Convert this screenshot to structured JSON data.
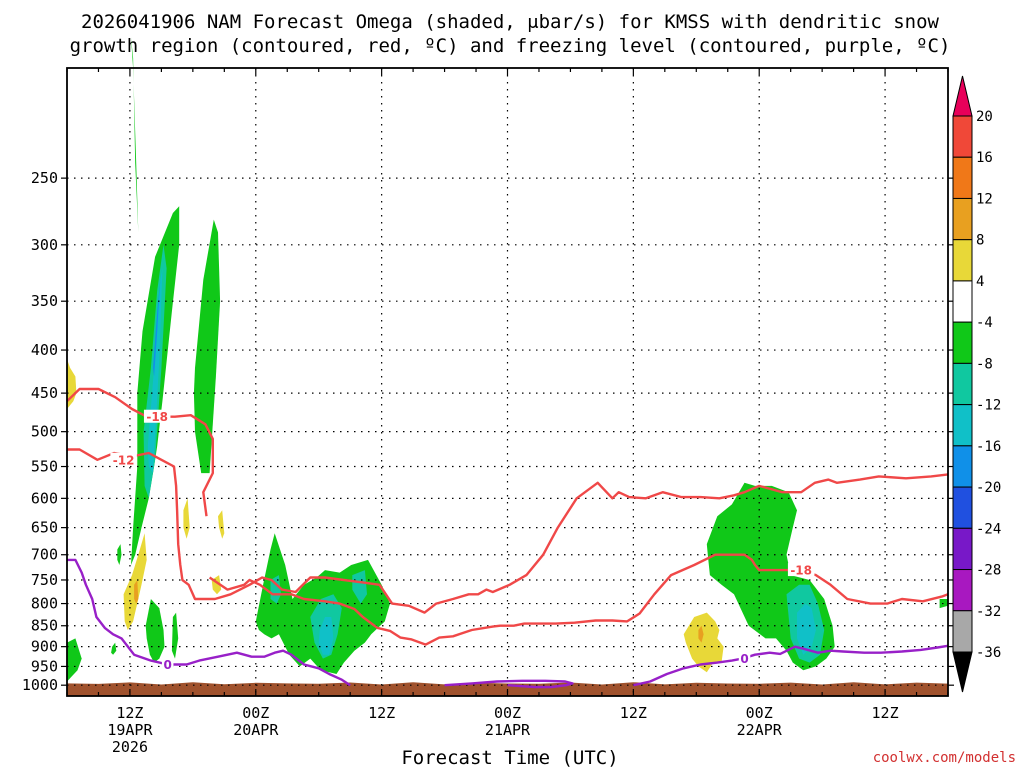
{
  "title_line1": "2026041906 NAM Forecast Omega (shaded, μbar/s) for KMSS with dendritic snow",
  "title_line2": "growth region (contoured, red, ºC) and freezing level (contoured, purple, ºC)",
  "credit": "coolwx.com/models",
  "chart_data": {
    "type": "heatmap",
    "title": "2026041906 NAM Forecast Omega (shaded, μbar/s) for KMSS with dendritic snow growth region (contoured, red, ºC) and freezing level (contoured, purple, ºC)",
    "xlabel": "Forecast Time (UTC)",
    "ylabel": "",
    "x_range_hours_from_init": [
      0,
      84
    ],
    "y_scale": "log-pressure",
    "y_reversed": true,
    "y_ticks": [
      250,
      300,
      350,
      400,
      450,
      500,
      550,
      600,
      650,
      700,
      750,
      800,
      850,
      900,
      950,
      1000
    ],
    "y_tick_labels": [
      "250",
      "300",
      "350",
      "400",
      "450",
      "500",
      "550",
      "600",
      "650",
      "700",
      "750",
      "800",
      "850",
      "900",
      "950",
      "1000"
    ],
    "x_ticks": [
      {
        "hour": 6,
        "lines": [
          "12Z",
          "19APR",
          "2026"
        ]
      },
      {
        "hour": 18,
        "lines": [
          "00Z",
          "20APR"
        ]
      },
      {
        "hour": 30,
        "lines": [
          "12Z"
        ]
      },
      {
        "hour": 42,
        "lines": [
          "00Z",
          "21APR"
        ]
      },
      {
        "hour": 54,
        "lines": [
          "12Z"
        ]
      },
      {
        "hour": 66,
        "lines": [
          "00Z",
          "22APR"
        ]
      },
      {
        "hour": 78,
        "lines": [
          "12Z"
        ]
      }
    ],
    "grid": true,
    "colorbar": {
      "units": "μbar/s",
      "labels": [
        "20",
        "16",
        "12",
        "8",
        "4",
        "-4",
        "-8",
        "-12",
        "-16",
        "-20",
        "-24",
        "-28",
        "-32",
        "-36"
      ],
      "colors": [
        "#e8005a",
        "#f04838",
        "#f07818",
        "#e8a020",
        "#e8d838",
        "#ffffff",
        "#10c818",
        "#10c8a0",
        "#10c0c8",
        "#1090e8",
        "#2050e0",
        "#7818c8",
        "#a818c0",
        "#a8a8a8",
        "#000000"
      ]
    },
    "shaded_regions": [
      {
        "color": "#10c818",
        "hours": [
          6.1,
          6.3,
          6.6,
          6.8,
          6.5,
          6.3
        ],
        "pressures": [
          170,
          185,
          240,
          290,
          240,
          180
        ]
      },
      {
        "color": "#10c818",
        "hours": [
          6.7,
          7.2,
          8.4,
          10.1,
          10.7,
          10.7,
          10.0,
          9.1,
          8.6,
          8.3,
          7.8,
          7.1,
          6.5,
          6.1,
          6.3,
          6.7
        ],
        "pressures": [
          450,
          380,
          310,
          275,
          270,
          300,
          360,
          460,
          520,
          550,
          600,
          650,
          700,
          720,
          650,
          550
        ]
      },
      {
        "color": "#10c8a0",
        "hours": [
          7.3,
          8.0,
          8.6,
          9.2,
          9.5,
          9.0,
          8.4,
          7.8,
          7.4
        ],
        "pressures": [
          500,
          420,
          340,
          300,
          320,
          420,
          540,
          600,
          580
        ]
      },
      {
        "color": "#10c0c8",
        "hours": [
          7.7,
          8.3,
          8.9,
          9.1,
          8.8,
          8.2,
          7.8
        ],
        "pressures": [
          520,
          420,
          330,
          320,
          410,
          560,
          550
        ]
      },
      {
        "color": "#1090e8",
        "hours": [
          8.2,
          8.6,
          8.9,
          8.6,
          8.3
        ],
        "pressures": [
          420,
          360,
          330,
          380,
          430
        ]
      },
      {
        "color": "#10c818",
        "hours": [
          12.2,
          13.0,
          14.0,
          14.4,
          14.6,
          14.2,
          13.6,
          12.8,
          12.2,
          12.1
        ],
        "pressures": [
          420,
          330,
          280,
          290,
          350,
          430,
          560,
          560,
          500,
          450
        ]
      },
      {
        "color": "#10c818",
        "hours": [
          7.5,
          8.0,
          8.8,
          9.2,
          9.3,
          8.8,
          8.3,
          7.9,
          7.6
        ],
        "pressures": [
          850,
          790,
          810,
          860,
          900,
          930,
          940,
          920,
          880
        ]
      },
      {
        "color": "#10c818",
        "hours": [
          10.1,
          10.4,
          10.6,
          10.3,
          10.0
        ],
        "pressures": [
          830,
          820,
          880,
          930,
          910
        ]
      },
      {
        "color": "#10c818",
        "hours": [
          4.3,
          4.6,
          4.7,
          4.4,
          4.2
        ],
        "pressures": [
          900,
          890,
          910,
          920,
          915
        ]
      },
      {
        "color": "#10c818",
        "hours": [
          0,
          0.8,
          1.4,
          1.0,
          0
        ],
        "pressures": [
          890,
          880,
          930,
          960,
          990
        ]
      },
      {
        "color": "#10c818",
        "hours": [
          4.8,
          5.1,
          5.2,
          5.0,
          4.8
        ],
        "pressures": [
          690,
          680,
          700,
          720,
          710
        ]
      },
      {
        "color": "#10c818",
        "hours": [
          18.0,
          18.7,
          19.4,
          19.8,
          20.8,
          21.5,
          22.6,
          23.8,
          24.6,
          26.0,
          27.1,
          28.7,
          30.0,
          30.8,
          30.3,
          29.0,
          28.4,
          27.4,
          26.4,
          25.7,
          24.2,
          23.2,
          22.2,
          21.2,
          20.2,
          19.5,
          18.8,
          18.3
        ],
        "pressures": [
          840,
          760,
          690,
          660,
          720,
          790,
          760,
          745,
          730,
          735,
          720,
          710,
          760,
          800,
          840,
          870,
          890,
          910,
          940,
          970,
          960,
          930,
          950,
          920,
          870,
          880,
          870,
          860
        ]
      },
      {
        "color": "#10c8a0",
        "hours": [
          23.2,
          24.2,
          25.4,
          26.2,
          25.8,
          25.2,
          24.4,
          23.6
        ],
        "pressures": [
          830,
          790,
          780,
          810,
          870,
          920,
          930,
          890
        ]
      },
      {
        "color": "#10c0c8",
        "hours": [
          24.1,
          24.6,
          25.2,
          25.4,
          25.0,
          24.4,
          24.0
        ],
        "pressures": [
          860,
          830,
          830,
          880,
          920,
          920,
          890
        ]
      },
      {
        "color": "#10c8a0",
        "hours": [
          27.2,
          28.4,
          28.6,
          28.0,
          27.2
        ],
        "pressures": [
          740,
          730,
          780,
          800,
          770
        ]
      },
      {
        "color": "#10c8a0",
        "hours": [
          19.4,
          20.2,
          20.4,
          20.0,
          19.4
        ],
        "pressures": [
          750,
          740,
          780,
          800,
          790
        ]
      },
      {
        "color": "#10c818",
        "hours": [
          61.0,
          62.0,
          63.4,
          64.6,
          65.6,
          67.2,
          68.8,
          69.6,
          69.2,
          68.6,
          69.0,
          70.8,
          72.2,
          73.0,
          73.2,
          72.4,
          71.4,
          70.2,
          69.2,
          68.6,
          67.6,
          66.6,
          65.0,
          63.6,
          62.4,
          61.3,
          61.1
        ],
        "pressures": [
          680,
          630,
          610,
          575,
          580,
          580,
          590,
          620,
          650,
          700,
          740,
          750,
          790,
          850,
          900,
          930,
          950,
          960,
          940,
          910,
          880,
          880,
          850,
          780,
          760,
          740,
          700
        ]
      },
      {
        "color": "#10c8a0",
        "hours": [
          68.6,
          69.8,
          70.8,
          71.6,
          72.2,
          71.8,
          70.8,
          69.8,
          69.0
        ],
        "pressures": [
          780,
          760,
          760,
          800,
          860,
          920,
          940,
          930,
          880
        ]
      },
      {
        "color": "#10c0c8",
        "hours": [
          69.6,
          70.4,
          71.0,
          71.4,
          71.0,
          70.2,
          69.6
        ],
        "pressures": [
          820,
          800,
          810,
          860,
          900,
          920,
          880
        ]
      },
      {
        "color": "#10c818",
        "hours": [
          83.2,
          84,
          84,
          83.2
        ],
        "pressures": [
          790,
          790,
          805,
          810
        ]
      },
      {
        "color": "#e8d838",
        "hours": [
          0,
          0.3,
          0.8,
          0.9,
          0.6,
          0
        ],
        "pressures": [
          410,
          420,
          430,
          450,
          460,
          470
        ]
      },
      {
        "color": "#e8d838",
        "hours": [
          5.4,
          6.2,
          6.8,
          7.4,
          7.6,
          7.1,
          6.8,
          6.3,
          5.8,
          5.5
        ],
        "pressures": [
          780,
          740,
          700,
          660,
          710,
          760,
          790,
          840,
          860,
          840
        ]
      },
      {
        "color": "#e8a020",
        "hours": [
          6.4,
          6.7,
          6.8,
          6.6,
          6.4
        ],
        "pressures": [
          760,
          750,
          790,
          800,
          790
        ]
      },
      {
        "color": "#e8d838",
        "hours": [
          11.1,
          11.5,
          11.7,
          11.4,
          11.1
        ],
        "pressures": [
          620,
          600,
          650,
          670,
          650
        ]
      },
      {
        "color": "#e8d838",
        "hours": [
          14.4,
          14.8,
          15.0,
          14.8,
          14.5
        ],
        "pressures": [
          630,
          620,
          660,
          670,
          650
        ]
      },
      {
        "color": "#e8d838",
        "hours": [
          13.8,
          14.5,
          14.7,
          14.3,
          13.9
        ],
        "pressures": [
          750,
          740,
          770,
          780,
          770
        ]
      },
      {
        "color": "#e8d838",
        "hours": [
          58.8,
          59.8,
          61.0,
          61.8,
          62.2,
          62.0,
          62.6,
          62.4,
          61.6,
          61.0,
          60.2,
          59.6,
          59.0
        ],
        "pressures": [
          870,
          830,
          820,
          840,
          860,
          880,
          900,
          940,
          940,
          965,
          950,
          930,
          890
        ]
      },
      {
        "color": "#e8a020",
        "hours": [
          60.2,
          60.5,
          60.7,
          60.5,
          60.2
        ],
        "pressures": [
          860,
          850,
          870,
          890,
          880
        ]
      }
    ],
    "contours": [
      {
        "label": "-18",
        "color": "#f04848",
        "hours": [
          0,
          1.2,
          3.0,
          4.6,
          6.2,
          7.6,
          8.6,
          10.3,
          11.8,
          13.2,
          13.9,
          13.9,
          13.0,
          13.3
        ],
        "pressures": [
          460,
          445,
          445,
          455,
          470,
          480,
          480,
          480,
          478,
          490,
          510,
          560,
          590,
          630
        ],
        "label_at": [
          8.6,
          480
        ]
      },
      {
        "label": "-12",
        "color": "#f04848",
        "hours": [
          0,
          1.2,
          2.9,
          4.5,
          6.2,
          7.8,
          9.0,
          10.2,
          10.4,
          10.5,
          10.6,
          10.8,
          11.0,
          11.6,
          12.2,
          14.1,
          15.6,
          17.4,
          18.6,
          19.5,
          20.5,
          21.8,
          23.2,
          24.6,
          26.4,
          28.2,
          29.8,
          31.0,
          32.6,
          34.1,
          35.2,
          36.8,
          38.3,
          39.2,
          40.0,
          40.6,
          42.2,
          43.8,
          45.4,
          46.8,
          48.6,
          50.6,
          52.0,
          52.6,
          53.6,
          55.2,
          56.8,
          58.6,
          60.4,
          62.2,
          63.6,
          64.6,
          66.0,
          68.2,
          70.0,
          71.3,
          72.6,
          73.4,
          75.6,
          77.4,
          80.0,
          82.4,
          84
        ],
        "pressures": [
          525,
          525,
          540,
          530,
          535,
          530,
          540,
          550,
          580,
          620,
          680,
          720,
          750,
          760,
          790,
          790,
          780,
          760,
          745,
          750,
          770,
          775,
          745,
          745,
          750,
          755,
          760,
          800,
          805,
          820,
          800,
          790,
          780,
          780,
          770,
          775,
          760,
          740,
          700,
          650,
          600,
          575,
          600,
          590,
          598,
          600,
          590,
          598,
          598,
          600,
          595,
          590,
          580,
          590,
          590,
          575,
          570,
          575,
          570,
          565,
          568,
          565,
          562
        ],
        "label_at": [
          5.4,
          540
        ]
      },
      {
        "label": "-18",
        "color": "#f04848",
        "hours": [
          13.6,
          15.3,
          16.9,
          17.4,
          18.4,
          19.6,
          21.4,
          22.6,
          24.6,
          26.0,
          27.4,
          28.2,
          29.6,
          30.8,
          31.8,
          32.8,
          34.2,
          35.5,
          36.8,
          38.6,
          40.6,
          41.3,
          42.6,
          43.6,
          45.0,
          46.6,
          48.4,
          50.4,
          52.0,
          53.4,
          54.6,
          56.0,
          57.6,
          59.8,
          61.8,
          64.6,
          65.3,
          65.6,
          66.0,
          67.2,
          69.4,
          70.4,
          71.4,
          72.8,
          74.4,
          76.6,
          78.2,
          79.6,
          81.6,
          83.4,
          84
        ],
        "pressures": [
          745,
          770,
          760,
          750,
          760,
          780,
          780,
          790,
          795,
          800,
          812,
          830,
          855,
          862,
          878,
          882,
          895,
          878,
          875,
          860,
          852,
          850,
          850,
          845,
          845,
          845,
          843,
          838,
          838,
          840,
          822,
          780,
          740,
          720,
          700,
          700,
          710,
          720,
          730,
          730,
          730,
          735,
          740,
          760,
          790,
          800,
          800,
          790,
          795,
          785,
          780
        ],
        "label_at": [
          70.0,
          730
        ]
      },
      {
        "label": "0",
        "color": "#9820c8",
        "hours": [
          0,
          0.8,
          1.4,
          1.8,
          2.4,
          2.8,
          3.6,
          4.4,
          5.2,
          6.4,
          8.0,
          9.6,
          11.4,
          12.6,
          14.4,
          16.2,
          17.6,
          18.8,
          19.8,
          20.6,
          21.4,
          22.6,
          24.0,
          25.0,
          26.2,
          27.0
        ],
        "pressures": [
          710,
          710,
          735,
          760,
          790,
          830,
          855,
          870,
          880,
          920,
          935,
          945,
          945,
          935,
          925,
          915,
          925,
          925,
          915,
          910,
          920,
          945,
          955,
          970,
          985,
          1000
        ],
        "label_at": [
          9.6,
          945
        ]
      },
      {
        "label": "0",
        "color": "#9820c8",
        "hours": [
          36.0,
          38.6,
          41.0,
          43.4,
          45.6,
          47.5,
          48.2,
          47.6,
          46.2,
          44.6,
          43.0,
          42.0
        ],
        "pressures": [
          1000,
          995,
          990,
          988,
          988,
          990,
          995,
          1000,
          1005,
          1005,
          1002,
          1000
        ],
        "label_at": null
      },
      {
        "label": "0",
        "color": "#9820c8",
        "hours": [
          54.0,
          55.6,
          57.2,
          58.8,
          60.4,
          62.0,
          63.4,
          64.4,
          65.6,
          67.0,
          68.0,
          69.4,
          70.2,
          71.6,
          72.8,
          74.0,
          76.0,
          77.6,
          79.6,
          81.4,
          83.0,
          84
        ],
        "pressures": [
          1000,
          990,
          970,
          955,
          945,
          940,
          935,
          930,
          920,
          915,
          918,
          900,
          905,
          915,
          910,
          912,
          915,
          915,
          912,
          908,
          902,
          898
        ],
        "label_at": [
          64.6,
          930
        ]
      }
    ],
    "ground": {
      "color": "#a0522d",
      "top_pressure": 995
    }
  }
}
